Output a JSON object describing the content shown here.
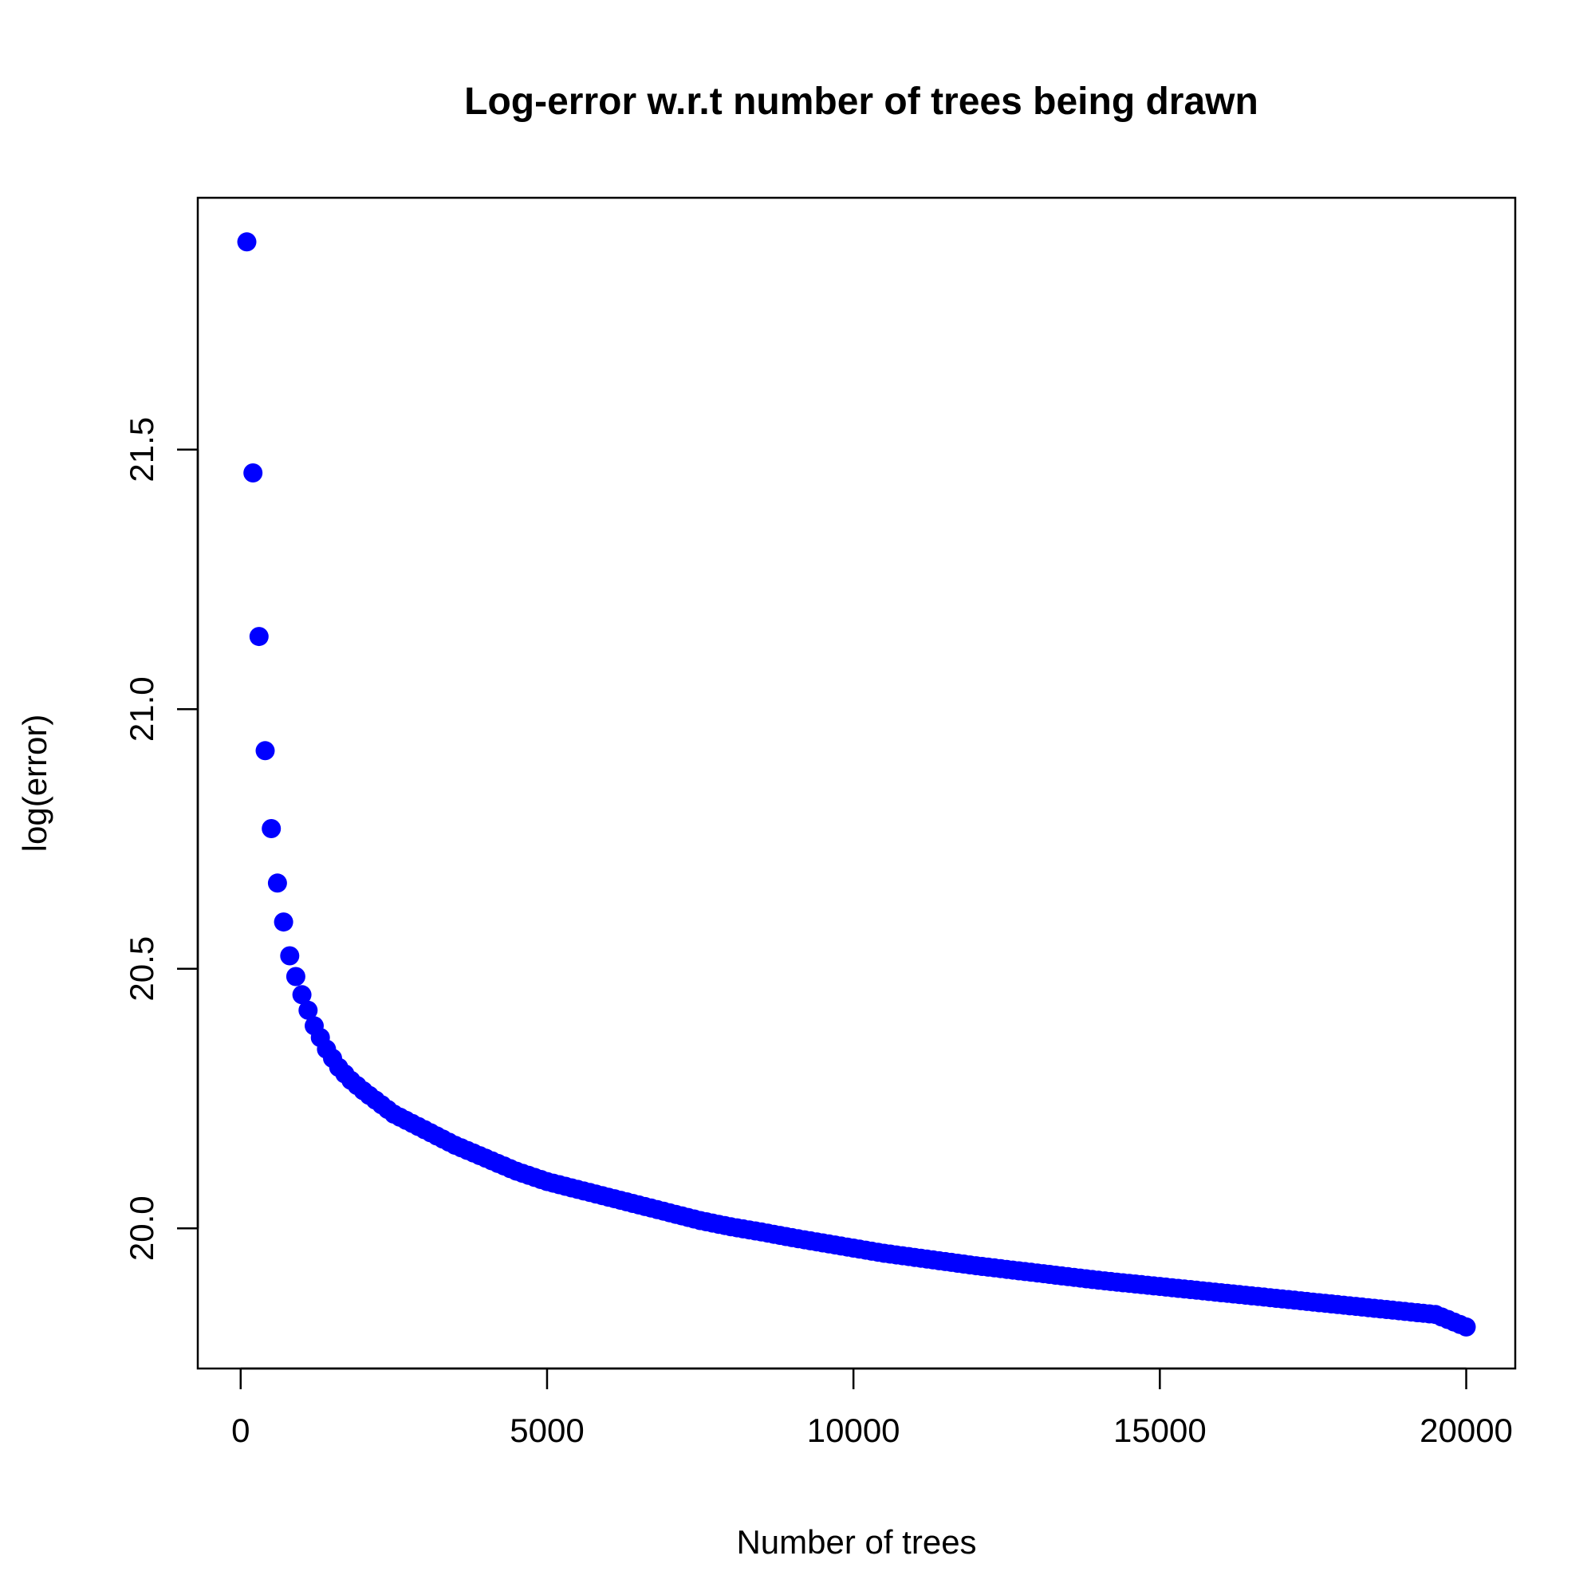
{
  "chart_data": {
    "type": "scatter",
    "title": "Log-error w.r.t number of trees being drawn",
    "xlabel": "Number of trees",
    "ylabel": "log(error)",
    "xlim": [
      -700,
      20800
    ],
    "ylim": [
      19.73,
      21.985
    ],
    "x_ticks": [
      0,
      5000,
      10000,
      15000,
      20000
    ],
    "x_tick_labels": [
      "0",
      "5000",
      "10000",
      "15000",
      "20000"
    ],
    "y_ticks": [
      20.0,
      20.5,
      21.0,
      21.5
    ],
    "y_tick_labels": [
      "20.0",
      "20.5",
      "21.0",
      "21.5"
    ],
    "grid": false,
    "legend": "none",
    "point_color": "#0000ff",
    "series": [
      {
        "x": [
          100,
          200,
          300,
          400,
          500,
          600,
          700,
          800,
          900,
          1000,
          1200,
          1400,
          1600,
          1800,
          2000,
          2500,
          3000,
          3500,
          4000,
          4500,
          5000,
          5500,
          6000,
          6500,
          7000,
          7500,
          8000,
          8500,
          9000,
          9500,
          10000,
          10500,
          11000,
          11500,
          12000,
          12500,
          13000,
          13500,
          14000,
          14500,
          15000,
          15500,
          16000,
          16500,
          17000,
          17500,
          18000,
          18500,
          19000,
          19500,
          20000
        ],
        "values": [
          21.9,
          21.455,
          21.14,
          20.92,
          20.77,
          20.665,
          20.59,
          20.525,
          20.485,
          20.45,
          20.39,
          20.345,
          20.31,
          20.285,
          20.265,
          20.22,
          20.19,
          20.16,
          20.135,
          20.11,
          20.09,
          20.075,
          20.06,
          20.045,
          20.03,
          20.015,
          20.003,
          19.993,
          19.982,
          19.972,
          19.962,
          19.952,
          19.944,
          19.936,
          19.928,
          19.921,
          19.914,
          19.907,
          19.9,
          19.894,
          19.888,
          19.882,
          19.876,
          19.87,
          19.864,
          19.858,
          19.852,
          19.846,
          19.84,
          19.834,
          19.81
        ]
      }
    ]
  }
}
